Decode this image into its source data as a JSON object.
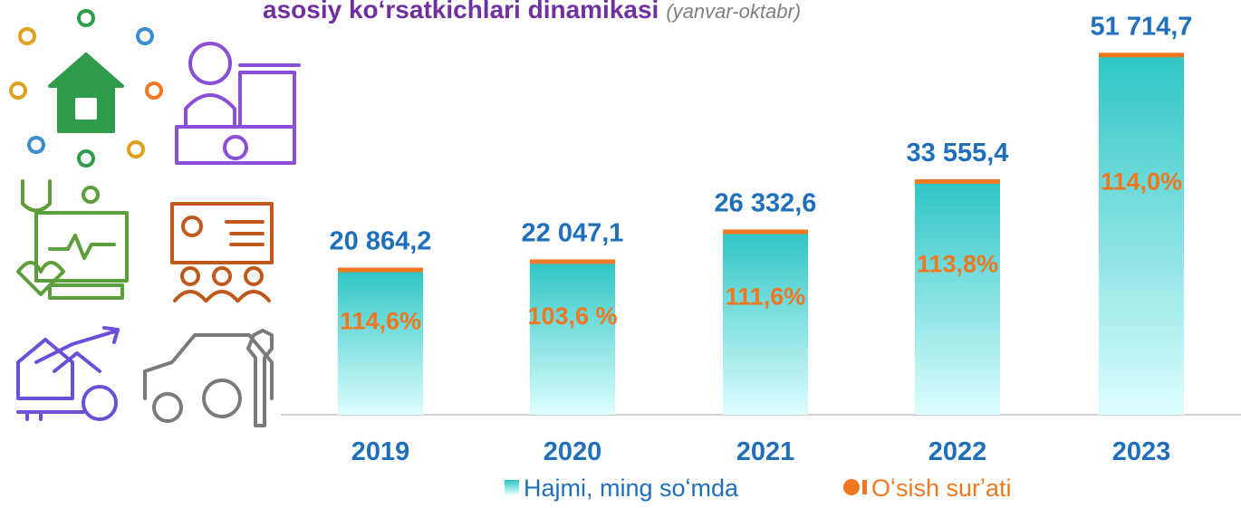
{
  "chart_data": {
    "type": "bar",
    "title": "asosiy koʻrsatkichlari dinamikasi",
    "subtitle": "(yanvar-oktabr)",
    "categories": [
      "2019",
      "2020",
      "2021",
      "2022",
      "2023"
    ],
    "ylim": [
      0,
      55000
    ],
    "series": [
      {
        "name": "Hajmi, ming soʻmda",
        "color": "#2ec5c5",
        "values": [
          20864.2,
          22047.1,
          26332.6,
          33555.4,
          51714.7
        ],
        "value_labels": [
          "20 864,2",
          "22 047,1",
          "26 332,6",
          "33 555,4",
          "51 714,7"
        ]
      },
      {
        "name": "Oʻsish surʼati",
        "color": "#f07820",
        "values": [
          114.6,
          103.6,
          111.6,
          113.8,
          114.0
        ],
        "value_labels": [
          "114,6%",
          "103,6 %",
          "111,6%",
          "113,8%",
          "114,0%"
        ]
      }
    ]
  }
}
